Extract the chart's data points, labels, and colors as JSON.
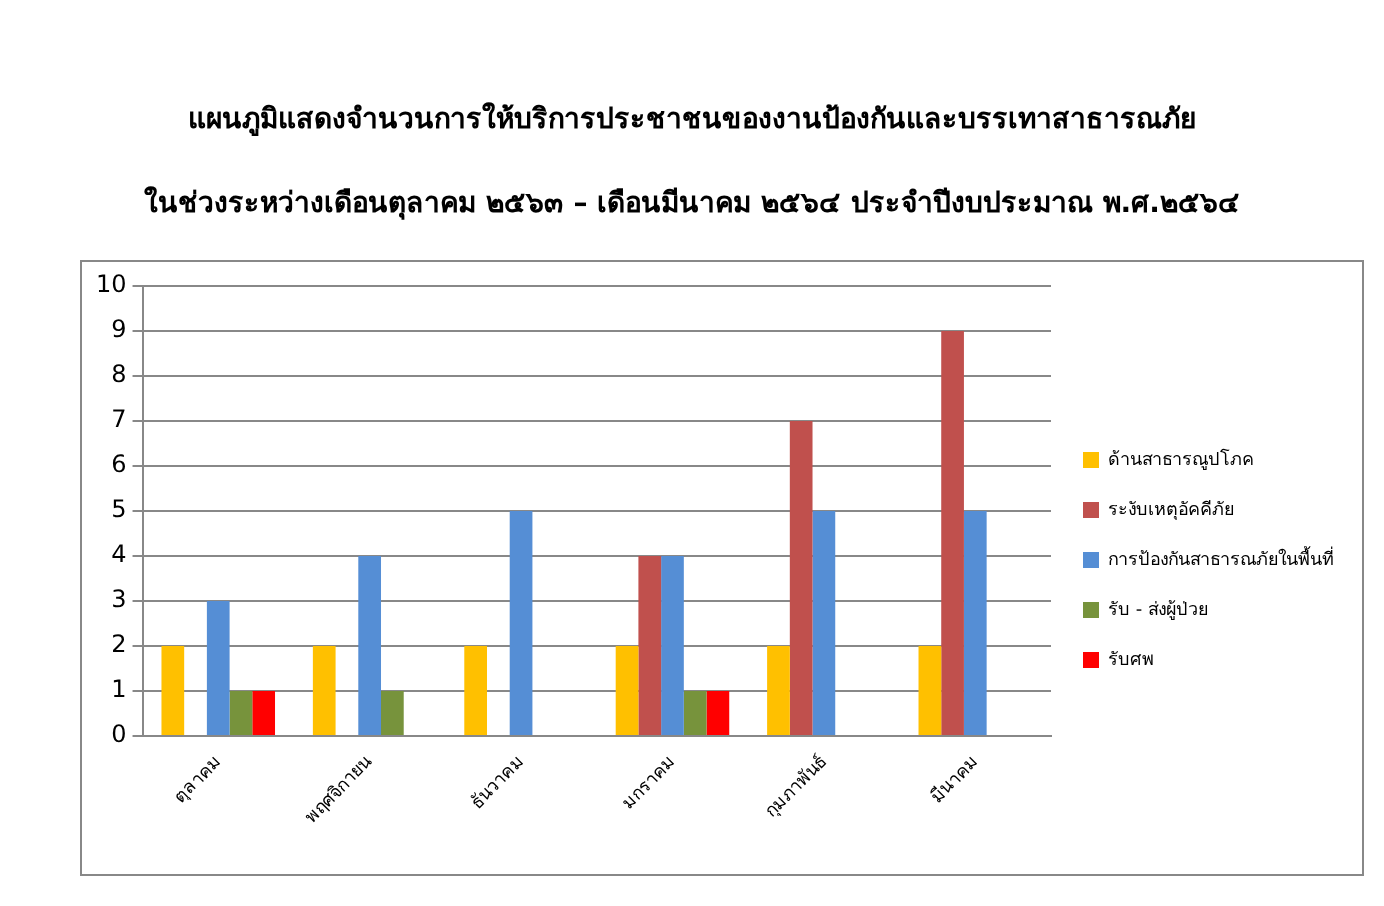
{
  "chart_data": {
    "type": "bar",
    "title": "แผนภูมิแสดงจำนวนการให้บริการประชาชนของงานป้องกันและบรรเทาสาธารณภัย",
    "subtitle": "ในช่วงระหว่างเดือนตุลาคม ๒๕๖๓ – เดือนมีนาคม ๒๕๖๔ ประจำปีงบประมาณ พ.ศ.๒๕๖๔",
    "categories": [
      "ตุลาคม",
      "พฤศจิกายน",
      "ธันวาคม",
      "มกราคม",
      "กุมภาพันธ์",
      "มีนาคม"
    ],
    "series": [
      {
        "name": "ด้านสาธารณูปโภค",
        "color": "#ffc000",
        "values": [
          2,
          2,
          2,
          2,
          2,
          2
        ]
      },
      {
        "name": "ระงับเหตุอัคคีภัย",
        "color": "#c0504d",
        "values": [
          null,
          null,
          null,
          4,
          7,
          9
        ]
      },
      {
        "name": "การป้องกันสาธารณภัยในพื้นที่",
        "color": "#558ed5",
        "values": [
          3,
          4,
          5,
          4,
          5,
          5
        ]
      },
      {
        "name": "รับ - ส่งผู้ป่วย",
        "color": "#77933c",
        "values": [
          1,
          1,
          null,
          1,
          null,
          null
        ]
      },
      {
        "name": "รับศพ",
        "color": "#ff0000",
        "values": [
          1,
          null,
          null,
          1,
          null,
          null
        ]
      }
    ],
    "ylim": [
      0,
      10
    ],
    "yticks": [
      0,
      1,
      2,
      3,
      4,
      5,
      6,
      7,
      8,
      9,
      10
    ],
    "grid": "y",
    "legend": "right"
  }
}
